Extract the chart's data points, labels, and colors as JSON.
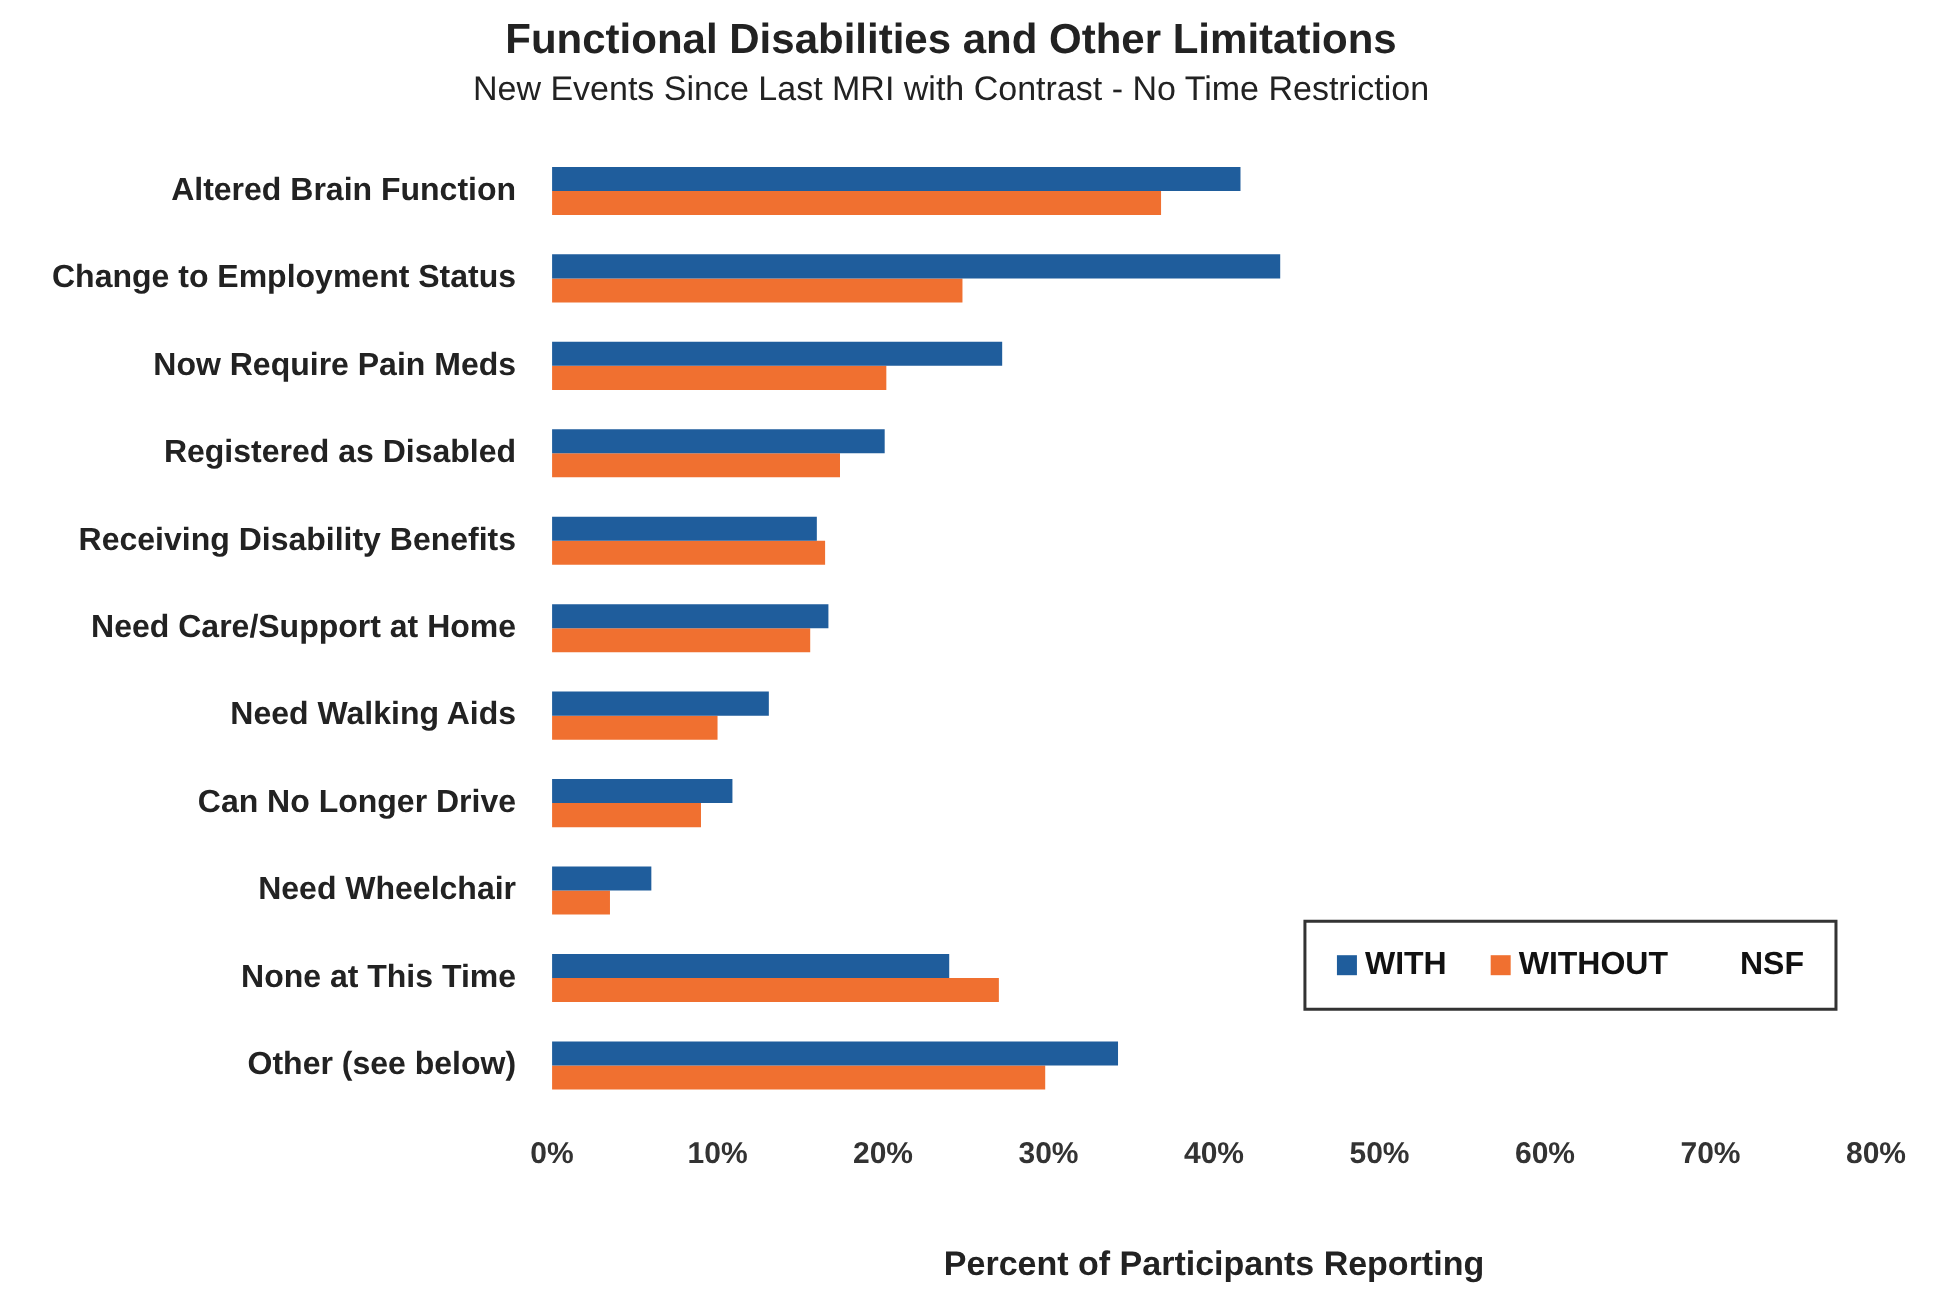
{
  "chart_data": {
    "type": "bar",
    "orientation": "horizontal",
    "title": "Functional Disabilities and Other Limitations",
    "subtitle": "New Events Since Last MRI with Contrast - No Time Restriction",
    "xlabel": "Percent of Participants Reporting",
    "categories": [
      "Altered Brain Function",
      "Change to Employment Status",
      "Now Require Pain Meds",
      "Registered as Disabled",
      "Receiving Disability Benefits",
      "Need Care/Support at Home",
      "Need Walking Aids",
      "Can No Longer Drive",
      "Need Wheelchair",
      "None at This Time",
      "Other (see below)"
    ],
    "series": [
      {
        "name": "WITH",
        "color": "#1f5d9c",
        "values": [
          41.6,
          44,
          27.2,
          20.1,
          16,
          16.7,
          13.1,
          10.9,
          6,
          24,
          34.2
        ]
      },
      {
        "name": "WITHOUT",
        "color": "#f07030",
        "values": [
          36.8,
          24.8,
          20.2,
          17.4,
          16.5,
          15.6,
          10,
          9,
          3.5,
          27,
          29.8
        ]
      },
      {
        "name": "NSF",
        "values": [
          null,
          null,
          null,
          null,
          null,
          null,
          null,
          null,
          null,
          null,
          null
        ]
      }
    ],
    "xlim": [
      0,
      80
    ],
    "xticks": [
      {
        "value": 0,
        "label": "0%"
      },
      {
        "value": 10,
        "label": "10%"
      },
      {
        "value": 20,
        "label": "20%"
      },
      {
        "value": 30,
        "label": "30%"
      },
      {
        "value": 40,
        "label": "40%"
      },
      {
        "value": 50,
        "label": "50%"
      },
      {
        "value": 60,
        "label": "60%"
      },
      {
        "value": 70,
        "label": "70%"
      },
      {
        "value": 80,
        "label": "80%"
      }
    ],
    "grid": false,
    "legend": "bottom right"
  }
}
